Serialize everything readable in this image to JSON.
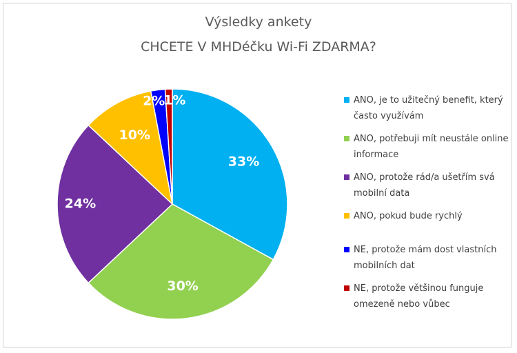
{
  "chart_data": {
    "type": "pie",
    "title": "Výsledky ankety",
    "subtitle": "CHCETE V MHDéčku Wi-Fi ZDARMA?",
    "legend_position": "right",
    "slices": [
      {
        "label": "ANO, je to užitečný benefit, který často využívám",
        "value": 33,
        "display": "33%",
        "color": "#00b0f0"
      },
      {
        "label": "ANO, potřebuji mít neustále online informace",
        "value": 30,
        "display": "30%",
        "color": "#92d050"
      },
      {
        "label": "ANO, protože rád/a ušetřím svá mobilní data",
        "value": 24,
        "display": "24%",
        "color": "#7030a0"
      },
      {
        "label": "ANO, pokud bude rychlý",
        "value": 10,
        "display": "10%",
        "color": "#ffc000"
      },
      {
        "label": "NE, protože mám dost vlastních mobilních dat",
        "value": 2,
        "display": "2%",
        "color": "#0000ff"
      },
      {
        "label": "NE, protože většinou funguje omezeně nebo vůbec",
        "value": 1,
        "display": "1%",
        "color": "#c00000"
      }
    ]
  }
}
